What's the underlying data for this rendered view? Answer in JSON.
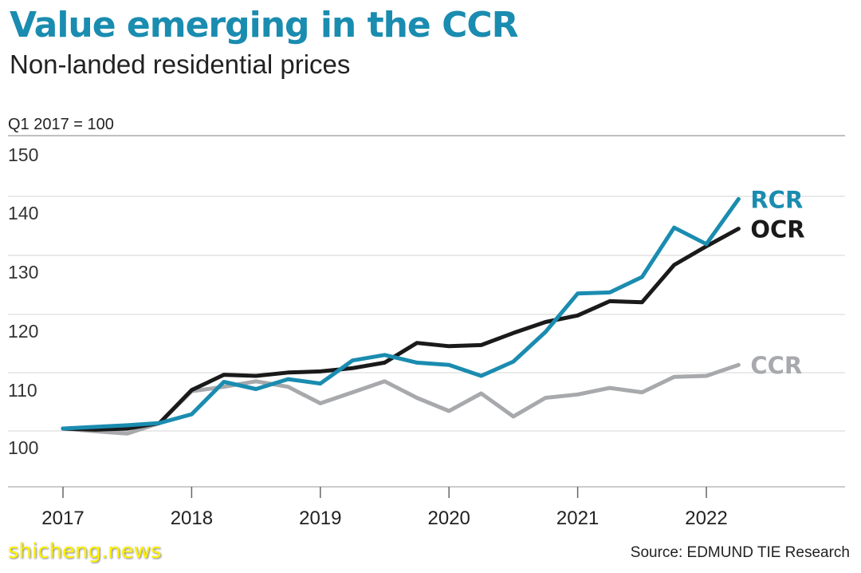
{
  "chart_data": {
    "type": "line",
    "title": "Value emerging in the CCR",
    "subtitle": "Non-landed residential prices",
    "ylabel": "Q1 2017 = 100",
    "ylim": [
      100,
      150
    ],
    "yticks": [
      "100",
      "110",
      "120",
      "130",
      "140",
      "150"
    ],
    "xticks": [
      "2017",
      "2018",
      "2019",
      "2020",
      "2021",
      "2022"
    ],
    "grid": true,
    "x": [
      2017.0,
      2017.25,
      2017.5,
      2017.75,
      2018.0,
      2018.25,
      2018.5,
      2018.75,
      2019.0,
      2019.25,
      2019.5,
      2019.75,
      2020.0,
      2020.25,
      2020.5,
      2020.75,
      2021.0,
      2021.25,
      2021.5,
      2021.75,
      2022.0,
      2022.25
    ],
    "series": [
      {
        "name": "RCR",
        "color": "#1a8cb0",
        "values": [
          100,
          100.3,
          100.6,
          101.0,
          102.6,
          108.5,
          107.2,
          109.0,
          108.2,
          112.4,
          113.4,
          112.0,
          111.6,
          109.6,
          112.2,
          117.6,
          124.6,
          124.8,
          127.6,
          136.6,
          133.6,
          141.8
        ]
      },
      {
        "name": "OCR",
        "color": "#1a1a1a",
        "values": [
          100,
          99.8,
          100.0,
          101.0,
          107.0,
          109.8,
          109.6,
          110.2,
          110.4,
          111.0,
          112.0,
          115.6,
          115.0,
          115.2,
          117.4,
          119.4,
          120.6,
          123.2,
          123.0,
          129.8,
          133.2,
          136.4
        ]
      },
      {
        "name": "CCR",
        "color": "#a7a9ac",
        "values": [
          100,
          99.5,
          99.1,
          101.0,
          106.8,
          107.6,
          108.6,
          107.6,
          104.6,
          106.6,
          108.6,
          105.6,
          103.2,
          106.4,
          102.2,
          105.6,
          106.2,
          107.4,
          106.6,
          109.4,
          109.6,
          111.6
        ]
      }
    ]
  },
  "source": "Source: EDMUND TIE Research",
  "watermark": "shicheng.news"
}
